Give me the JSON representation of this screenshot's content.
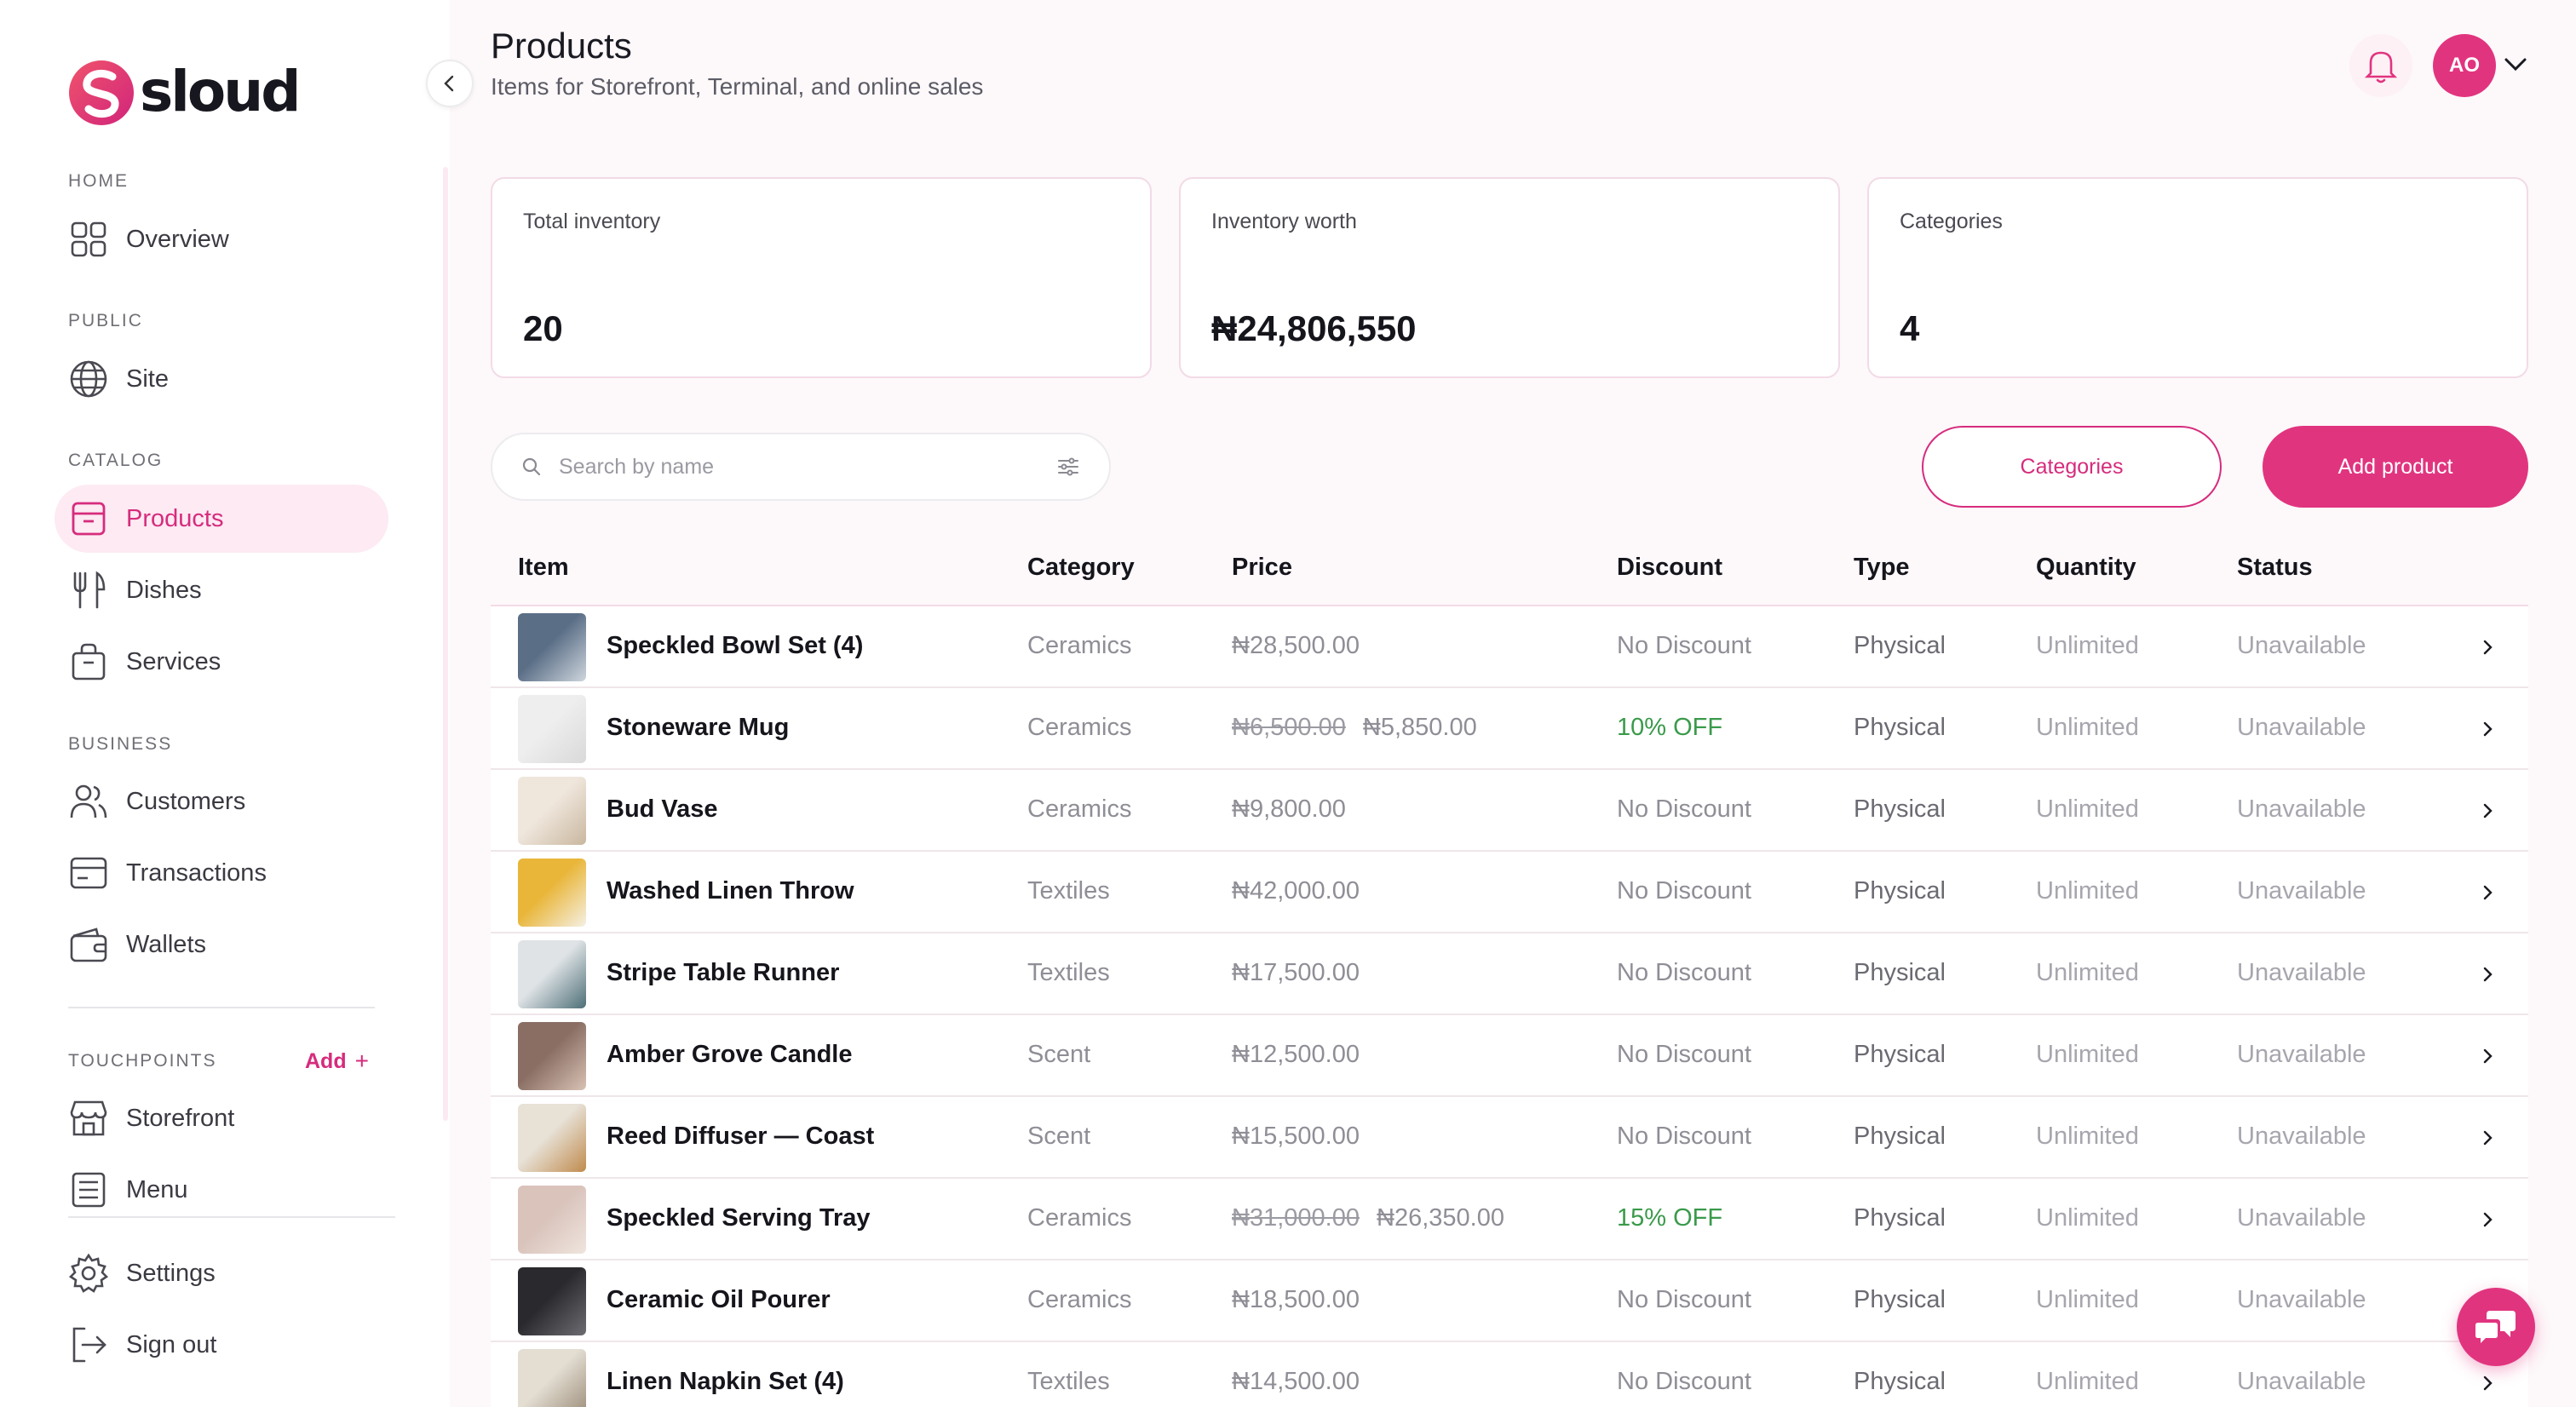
{
  "brand": {
    "name": "sloud",
    "accent": "#e1347f"
  },
  "sidebar": {
    "sections": [
      {
        "title": "HOME",
        "items": [
          {
            "label": "Overview",
            "icon": "grid-icon"
          }
        ]
      },
      {
        "title": "PUBLIC",
        "items": [
          {
            "label": "Site",
            "icon": "globe-icon"
          }
        ]
      },
      {
        "title": "CATALOG",
        "items": [
          {
            "label": "Products",
            "icon": "archive-icon",
            "active": true
          },
          {
            "label": "Dishes",
            "icon": "utensils-icon"
          },
          {
            "label": "Services",
            "icon": "bag-icon"
          }
        ]
      },
      {
        "title": "BUSINESS",
        "items": [
          {
            "label": "Customers",
            "icon": "users-icon"
          },
          {
            "label": "Transactions",
            "icon": "card-icon"
          },
          {
            "label": "Wallets",
            "icon": "wallet-icon"
          }
        ]
      },
      {
        "title": "TOUCHPOINTS",
        "add_label": "Add",
        "items": [
          {
            "label": "Storefront",
            "icon": "store-icon"
          },
          {
            "label": "Menu",
            "icon": "menu-list-icon"
          }
        ]
      }
    ],
    "footer": [
      {
        "label": "Settings",
        "icon": "gear-icon"
      },
      {
        "label": "Sign out",
        "icon": "sign-out-icon"
      }
    ]
  },
  "header": {
    "title": "Products",
    "subtitle": "Items for Storefront, Terminal, and online sales",
    "avatar_initials": "AO"
  },
  "stats": [
    {
      "label": "Total inventory",
      "value": "20"
    },
    {
      "label": "Inventory worth",
      "value": "₦24,806,550"
    },
    {
      "label": "Categories",
      "value": "4"
    }
  ],
  "toolbar": {
    "search_placeholder": "Search by name",
    "categories_label": "Categories",
    "add_label": "Add product"
  },
  "table": {
    "columns": [
      "Item",
      "Category",
      "Price",
      "Discount",
      "Type",
      "Quantity",
      "Status"
    ],
    "rows": [
      {
        "name": "Speckled Bowl Set (4)",
        "category": "Ceramics",
        "old_price": "",
        "price": "₦28,500.00",
        "discount": "No Discount",
        "type": "Physical",
        "quantity": "Unlimited",
        "status": "Unavailable",
        "thumb": [
          "#5a6e86",
          "#cfd6de"
        ]
      },
      {
        "name": "Stoneware Mug",
        "category": "Ceramics",
        "old_price": "₦6,500.00",
        "price": "₦5,850.00",
        "discount": "10% OFF",
        "type": "Physical",
        "quantity": "Unlimited",
        "status": "Unavailable",
        "thumb": [
          "#eeeeee",
          "#d9d9d9"
        ]
      },
      {
        "name": "Bud Vase",
        "category": "Ceramics",
        "old_price": "",
        "price": "₦9,800.00",
        "discount": "No Discount",
        "type": "Physical",
        "quantity": "Unlimited",
        "status": "Unavailable",
        "thumb": [
          "#efe6dc",
          "#c9b79f"
        ]
      },
      {
        "name": "Washed Linen Throw",
        "category": "Textiles",
        "old_price": "",
        "price": "₦42,000.00",
        "discount": "No Discount",
        "type": "Physical",
        "quantity": "Unlimited",
        "status": "Unavailable",
        "thumb": [
          "#e9b63a",
          "#f5f0e4"
        ]
      },
      {
        "name": "Stripe Table Runner",
        "category": "Textiles",
        "old_price": "",
        "price": "₦17,500.00",
        "discount": "No Discount",
        "type": "Physical",
        "quantity": "Unlimited",
        "status": "Unavailable",
        "thumb": [
          "#dfe3e6",
          "#4d6f77"
        ]
      },
      {
        "name": "Amber Grove Candle",
        "category": "Scent",
        "old_price": "",
        "price": "₦12,500.00",
        "discount": "No Discount",
        "type": "Physical",
        "quantity": "Unlimited",
        "status": "Unavailable",
        "thumb": [
          "#8a6e64",
          "#d8c2b4"
        ]
      },
      {
        "name": "Reed Diffuser — Coast",
        "category": "Scent",
        "old_price": "",
        "price": "₦15,500.00",
        "discount": "No Discount",
        "type": "Physical",
        "quantity": "Unlimited",
        "status": "Unavailable",
        "thumb": [
          "#e7e1d6",
          "#c08b4e"
        ]
      },
      {
        "name": "Speckled Serving Tray",
        "category": "Ceramics",
        "old_price": "₦31,000.00",
        "price": "₦26,350.00",
        "discount": "15% OFF",
        "type": "Physical",
        "quantity": "Unlimited",
        "status": "Unavailable",
        "thumb": [
          "#d9c3bb",
          "#efe5de"
        ]
      },
      {
        "name": "Ceramic Oil Pourer",
        "category": "Ceramics",
        "old_price": "",
        "price": "₦18,500.00",
        "discount": "No Discount",
        "type": "Physical",
        "quantity": "Unlimited",
        "status": "Unavailable",
        "thumb": [
          "#2a2a2e",
          "#6c6c72"
        ]
      },
      {
        "name": "Linen Napkin Set (4)",
        "category": "Textiles",
        "old_price": "",
        "price": "₦14,500.00",
        "discount": "No Discount",
        "type": "Physical",
        "quantity": "Unlimited",
        "status": "Unavailable",
        "thumb": [
          "#e3ddd2",
          "#9b8c78"
        ]
      }
    ]
  }
}
